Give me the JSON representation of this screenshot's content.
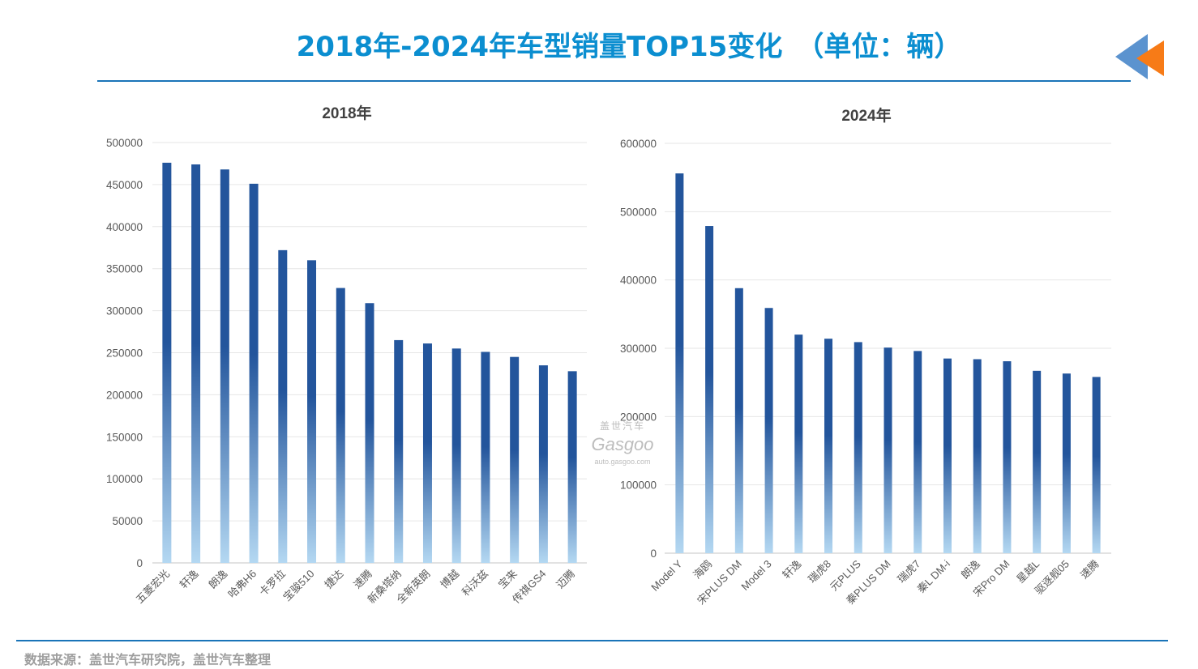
{
  "page": {
    "title": "2018年-2024年车型销量TOP15变化　（单位：辆）",
    "footer_note": "数据来源：盖世汽车研究院，盖世汽车整理",
    "watermark": {
      "brand_cn": "盖世汽车",
      "brand_en": "Gasgoo",
      "url": "auto.gasgoo.com"
    },
    "logo_icon": "double-triangle-arrow-icon",
    "colors": {
      "title": "#0B8ED0",
      "rule": "#1A74B8",
      "bar_top": "#23559C",
      "bar_bottom": "#B4D8F2",
      "logo_blue": "#5B93CF",
      "logo_orange": "#F77B17"
    }
  },
  "chart_data": [
    {
      "type": "bar",
      "title": "2018年",
      "xlabel": "",
      "ylabel": "",
      "ylim": [
        0,
        500000
      ],
      "yticks": [
        0,
        50000,
        100000,
        150000,
        200000,
        250000,
        300000,
        350000,
        400000,
        450000,
        500000
      ],
      "grid": true,
      "legend": "none",
      "categories": [
        "五菱宏光",
        "轩逸",
        "朗逸",
        "哈弗H6",
        "卡罗拉",
        "宝骏510",
        "捷达",
        "速腾",
        "新桑塔纳",
        "全新英朗",
        "博越",
        "科沃兹",
        "宝来",
        "传祺GS4",
        "迈腾"
      ],
      "values": [
        476000,
        474000,
        468000,
        451000,
        372000,
        360000,
        327000,
        309000,
        265000,
        261000,
        255000,
        251000,
        245000,
        235000,
        228000
      ]
    },
    {
      "type": "bar",
      "title": "2024年",
      "xlabel": "",
      "ylabel": "",
      "ylim": [
        0,
        600000
      ],
      "yticks": [
        0,
        100000,
        200000,
        300000,
        400000,
        500000,
        600000
      ],
      "grid": true,
      "legend": "none",
      "categories": [
        "Model Y",
        "海鸥",
        "宋PLUS DM",
        "Model 3",
        "轩逸",
        "瑞虎8",
        "元PLUS",
        "秦PLUS DM",
        "瑞虎7",
        "秦L DM-i",
        "朗逸",
        "宋Pro DM",
        "星越L",
        "驱逐舰05",
        "速腾"
      ],
      "values": [
        556000,
        479000,
        388000,
        359000,
        320000,
        314000,
        309000,
        301000,
        296000,
        285000,
        284000,
        281000,
        267000,
        263000,
        258000
      ]
    }
  ]
}
